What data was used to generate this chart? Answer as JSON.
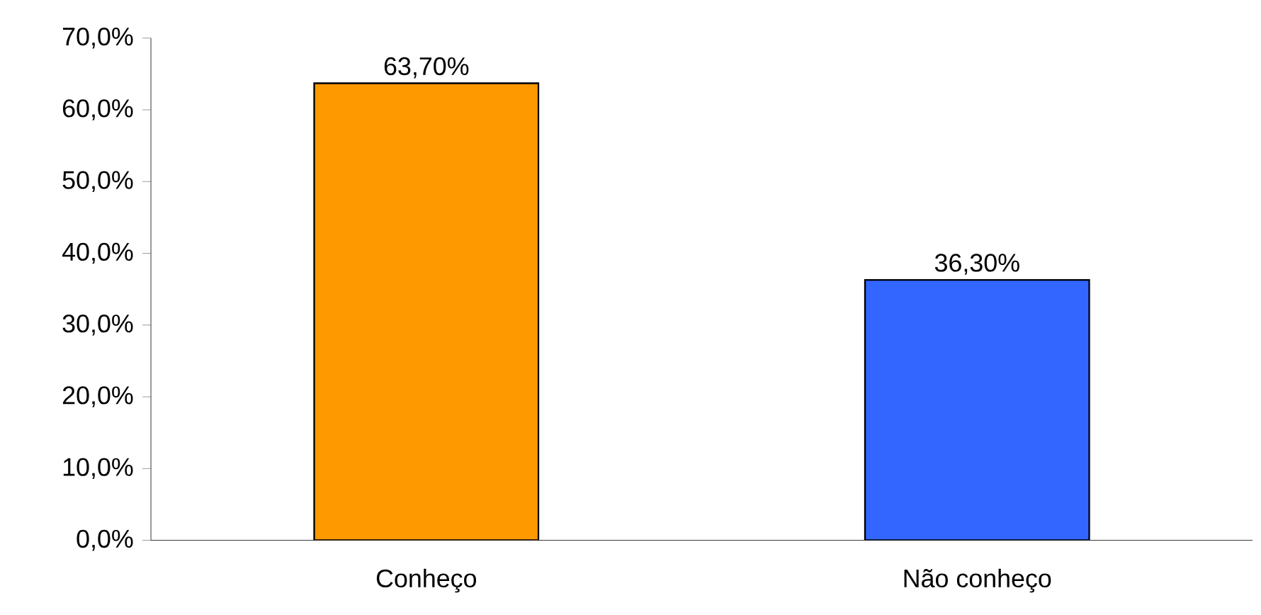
{
  "chart_data": {
    "type": "bar",
    "categories": [
      "Conheço",
      "Não conheço"
    ],
    "values": [
      63.7,
      36.3
    ],
    "colors": [
      "#ff9900",
      "#3366ff"
    ],
    "value_labels": [
      "63,70%",
      "36,30%"
    ],
    "ylim": [
      0,
      70
    ],
    "yticks": [
      {
        "value": 0,
        "label": "0,0%"
      },
      {
        "value": 10,
        "label": "10,0%"
      },
      {
        "value": 20,
        "label": "20,0%"
      },
      {
        "value": 30,
        "label": "30,0%"
      },
      {
        "value": 40,
        "label": "40,0%"
      },
      {
        "value": 50,
        "label": "50,0%"
      },
      {
        "value": 60,
        "label": "60,0%"
      },
      {
        "value": 70,
        "label": "70,0%"
      }
    ]
  }
}
